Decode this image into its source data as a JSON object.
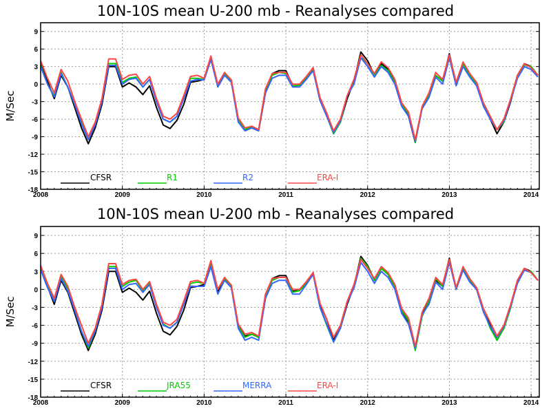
{
  "chart_data": [
    {
      "type": "line",
      "title": "10N-10S mean U-200 mb - Reanalyses compared",
      "ylabel": "M/Sec",
      "xlabel": "",
      "ylim": [
        -18,
        10.5
      ],
      "yticks": [
        9,
        6,
        3,
        0,
        -3,
        -6,
        -9,
        -12,
        -15,
        -18
      ],
      "xlim": [
        2008,
        2014.1
      ],
      "xticks": [
        2008,
        2009,
        2010,
        2011,
        2012,
        2013,
        2014
      ],
      "grid": true,
      "legend_position": "bottom-left",
      "x": [
        2008.0,
        2008.083,
        2008.167,
        2008.25,
        2008.333,
        2008.417,
        2008.5,
        2008.583,
        2008.667,
        2008.75,
        2008.833,
        2008.917,
        2009.0,
        2009.083,
        2009.167,
        2009.25,
        2009.333,
        2009.417,
        2009.5,
        2009.583,
        2009.667,
        2009.75,
        2009.833,
        2009.917,
        2010.0,
        2010.083,
        2010.167,
        2010.25,
        2010.333,
        2010.417,
        2010.5,
        2010.583,
        2010.667,
        2010.75,
        2010.833,
        2010.917,
        2011.0,
        2011.083,
        2011.167,
        2011.25,
        2011.333,
        2011.417,
        2011.5,
        2011.583,
        2011.667,
        2011.75,
        2011.833,
        2011.917,
        2012.0,
        2012.083,
        2012.167,
        2012.25,
        2012.333,
        2012.417,
        2012.5,
        2012.583,
        2012.667,
        2012.75,
        2012.833,
        2012.917,
        2013.0,
        2013.083,
        2013.167,
        2013.25,
        2013.333,
        2013.417,
        2013.5,
        2013.583,
        2013.667,
        2013.75,
        2013.833,
        2013.917,
        2014.0,
        2014.083
      ],
      "series": [
        {
          "name": "CFSR",
          "color": "#000000",
          "values": [
            3.5,
            0.5,
            -2.5,
            1.5,
            -0.5,
            -4.0,
            -7.5,
            -10.2,
            -7.5,
            -3.5,
            3.0,
            3.0,
            -0.5,
            0.2,
            -0.5,
            -1.8,
            -0.3,
            -4.0,
            -7.0,
            -7.6,
            -6.2,
            -3.5,
            0.3,
            0.5,
            0.8,
            4.5,
            -0.3,
            1.8,
            0.4,
            -6.0,
            -7.8,
            -7.5,
            -8.0,
            -1.5,
            1.8,
            2.3,
            2.3,
            -0.3,
            -0.2,
            1.0,
            2.8,
            -2.5,
            -5.0,
            -8.5,
            -6.5,
            -2.5,
            0.5,
            5.5,
            4.0,
            1.5,
            3.5,
            2.5,
            0.5,
            -3.5,
            -5.5,
            -10.0,
            -4.0,
            -2.0,
            1.5,
            0.5,
            5.2,
            0.0,
            3.5,
            1.5,
            0.0,
            -3.5,
            -6.0,
            -8.5,
            -6.5,
            -3.0,
            1.5,
            3.5,
            3.0,
            1.5
          ]
        },
        {
          "name": "R1",
          "color": "#00cc00",
          "values": [
            3.2,
            0.0,
            -2.0,
            2.0,
            -0.5,
            -3.5,
            -6.5,
            -9.5,
            -7.0,
            -3.0,
            3.5,
            3.5,
            0.3,
            1.0,
            1.2,
            -0.5,
            0.8,
            -3.0,
            -6.0,
            -6.5,
            -5.5,
            -2.5,
            1.0,
            1.0,
            0.8,
            4.5,
            -0.3,
            1.8,
            0.4,
            -6.0,
            -7.8,
            -7.3,
            -7.8,
            -1.0,
            1.5,
            2.0,
            1.8,
            -0.3,
            -0.2,
            1.0,
            2.5,
            -2.8,
            -5.5,
            -8.5,
            -6.5,
            -2.0,
            0.5,
            4.5,
            3.5,
            1.5,
            3.2,
            2.3,
            0.3,
            -3.5,
            -5.0,
            -10.0,
            -4.0,
            -2.0,
            1.5,
            0.5,
            4.5,
            0.0,
            3.5,
            1.5,
            0.0,
            -3.5,
            -6.0,
            -7.8,
            -6.5,
            -2.5,
            1.5,
            3.3,
            3.0,
            1.5
          ]
        },
        {
          "name": "R2",
          "color": "#3366ff",
          "values": [
            3.0,
            0.0,
            -2.2,
            1.8,
            -0.5,
            -3.5,
            -6.8,
            -9.5,
            -7.0,
            -3.0,
            3.2,
            3.2,
            0.0,
            0.8,
            1.0,
            -0.5,
            0.8,
            -3.0,
            -6.0,
            -6.5,
            -5.5,
            -2.5,
            0.5,
            0.8,
            0.7,
            4.2,
            -0.5,
            1.5,
            0.3,
            -6.5,
            -8.0,
            -7.5,
            -8.0,
            -1.5,
            1.0,
            1.5,
            1.5,
            -0.5,
            -0.5,
            0.8,
            2.3,
            -2.8,
            -5.5,
            -8.3,
            -6.3,
            -2.0,
            0.0,
            4.5,
            3.0,
            1.2,
            3.0,
            2.0,
            0.0,
            -3.8,
            -5.5,
            -9.8,
            -4.2,
            -2.3,
            1.2,
            0.0,
            4.5,
            -0.3,
            3.0,
            1.2,
            -0.3,
            -3.8,
            -6.0,
            -7.8,
            -6.3,
            -2.8,
            1.0,
            3.0,
            2.5,
            1.2
          ]
        },
        {
          "name": "ERA-I",
          "color": "#ff4444",
          "values": [
            4.0,
            1.0,
            -1.5,
            2.5,
            0.5,
            -3.0,
            -6.0,
            -9.0,
            -6.5,
            -2.5,
            4.3,
            4.3,
            0.8,
            1.5,
            1.7,
            0.0,
            1.3,
            -2.5,
            -5.5,
            -6.0,
            -5.0,
            -2.0,
            1.3,
            1.5,
            1.0,
            4.8,
            0.0,
            2.0,
            0.7,
            -5.8,
            -7.5,
            -7.2,
            -7.8,
            -0.8,
            1.8,
            2.0,
            2.0,
            0.0,
            0.0,
            1.3,
            2.8,
            -2.3,
            -5.0,
            -8.0,
            -6.0,
            -2.0,
            0.8,
            5.0,
            3.5,
            1.8,
            3.8,
            2.8,
            0.8,
            -3.2,
            -4.8,
            -9.5,
            -3.8,
            -1.5,
            2.0,
            0.8,
            5.0,
            0.3,
            3.8,
            1.8,
            0.3,
            -3.2,
            -5.5,
            -7.8,
            -6.0,
            -2.5,
            1.5,
            3.5,
            2.8,
            1.5
          ]
        }
      ]
    },
    {
      "type": "line",
      "title": "10N-10S mean U-200 mb - Reanalyses compared",
      "ylabel": "M/Sec",
      "xlabel": "",
      "ylim": [
        -18,
        10.5
      ],
      "yticks": [
        9,
        6,
        3,
        0,
        -3,
        -6,
        -9,
        -12,
        -15,
        -18
      ],
      "xlim": [
        2008,
        2014.1
      ],
      "xticks": [
        2008,
        2009,
        2010,
        2011,
        2012,
        2013,
        2014
      ],
      "grid": true,
      "legend_position": "bottom-left",
      "x": [
        2008.0,
        2008.083,
        2008.167,
        2008.25,
        2008.333,
        2008.417,
        2008.5,
        2008.583,
        2008.667,
        2008.75,
        2008.833,
        2008.917,
        2009.0,
        2009.083,
        2009.167,
        2009.25,
        2009.333,
        2009.417,
        2009.5,
        2009.583,
        2009.667,
        2009.75,
        2009.833,
        2009.917,
        2010.0,
        2010.083,
        2010.167,
        2010.25,
        2010.333,
        2010.417,
        2010.5,
        2010.583,
        2010.667,
        2010.75,
        2010.833,
        2010.917,
        2011.0,
        2011.083,
        2011.167,
        2011.25,
        2011.333,
        2011.417,
        2011.5,
        2011.583,
        2011.667,
        2011.75,
        2011.833,
        2011.917,
        2012.0,
        2012.083,
        2012.167,
        2012.25,
        2012.333,
        2012.417,
        2012.5,
        2012.583,
        2012.667,
        2012.75,
        2012.833,
        2012.917,
        2013.0,
        2013.083,
        2013.167,
        2013.25,
        2013.333,
        2013.417,
        2013.5,
        2013.583,
        2013.667,
        2013.75,
        2013.833,
        2013.917,
        2014.0,
        2014.083
      ],
      "series": [
        {
          "name": "CFSR",
          "color": "#000000",
          "values": [
            3.5,
            0.5,
            -2.5,
            1.5,
            -0.5,
            -4.0,
            -7.5,
            -10.2,
            -7.5,
            -3.5,
            3.0,
            3.0,
            -0.5,
            0.2,
            -0.5,
            -1.8,
            -0.3,
            -4.0,
            -7.0,
            -7.6,
            -6.2,
            -3.5,
            0.3,
            0.5,
            0.8,
            4.5,
            -0.3,
            1.8,
            0.4,
            -6.0,
            -7.8,
            -7.5,
            -8.0,
            -1.5,
            1.8,
            2.3,
            2.3,
            -0.3,
            -0.2,
            1.0,
            2.8,
            -2.5,
            -5.0,
            -8.5,
            -6.5,
            -2.5,
            0.5,
            5.5,
            4.0,
            1.5,
            3.5,
            2.5,
            0.5,
            -3.5,
            -5.5,
            -10.0,
            -4.0,
            -2.0,
            1.5,
            0.5,
            5.2,
            0.0,
            3.5,
            1.5,
            0.0,
            -3.5,
            -6.0,
            -8.5,
            -6.5,
            -3.0,
            1.5,
            3.5,
            3.0,
            1.5
          ]
        },
        {
          "name": "JRA55",
          "color": "#00cc00",
          "values": [
            3.8,
            0.8,
            -2.0,
            2.2,
            0.0,
            -3.5,
            -7.0,
            -9.8,
            -7.0,
            -3.0,
            3.8,
            3.8,
            0.5,
            1.2,
            1.5,
            -0.2,
            1.0,
            -2.8,
            -5.8,
            -6.5,
            -5.5,
            -2.5,
            1.0,
            1.2,
            1.0,
            4.5,
            0.0,
            1.8,
            0.5,
            -6.2,
            -8.0,
            -7.5,
            -8.0,
            -1.0,
            1.5,
            2.0,
            2.0,
            -0.5,
            -0.2,
            1.0,
            2.6,
            -3.0,
            -6.0,
            -8.8,
            -6.5,
            -2.0,
            0.5,
            5.2,
            3.8,
            1.5,
            3.5,
            2.5,
            0.5,
            -3.5,
            -5.2,
            -10.2,
            -4.5,
            -2.0,
            1.8,
            0.5,
            4.8,
            0.3,
            3.5,
            1.5,
            0.0,
            -3.5,
            -6.5,
            -8.5,
            -6.5,
            -3.0,
            1.2,
            3.2,
            3.0,
            1.5
          ]
        },
        {
          "name": "MERRA",
          "color": "#3366ff",
          "values": [
            3.3,
            0.3,
            -2.0,
            1.8,
            -0.3,
            -3.5,
            -7.0,
            -9.5,
            -7.0,
            -3.0,
            3.5,
            3.5,
            0.0,
            0.8,
            1.0,
            -0.5,
            0.8,
            -3.0,
            -6.0,
            -6.5,
            -5.5,
            -2.5,
            0.5,
            0.5,
            0.5,
            3.8,
            -0.8,
            1.5,
            0.3,
            -6.5,
            -8.5,
            -8.0,
            -8.5,
            -1.5,
            1.0,
            1.5,
            1.5,
            -0.8,
            -0.8,
            0.8,
            2.5,
            -3.0,
            -5.8,
            -8.8,
            -6.5,
            -2.2,
            0.2,
            4.5,
            3.0,
            1.0,
            3.0,
            2.0,
            0.0,
            -4.0,
            -5.8,
            -9.8,
            -4.2,
            -2.5,
            1.2,
            0.0,
            4.5,
            0.0,
            3.2,
            1.2,
            0.0,
            -3.8,
            -6.2,
            -8.0,
            -6.2,
            -2.8,
            1.0,
            3.2,
            2.8,
            1.5
          ]
        },
        {
          "name": "ERA-I",
          "color": "#ff4444",
          "values": [
            4.0,
            1.0,
            -1.5,
            2.5,
            0.5,
            -3.0,
            -6.0,
            -9.0,
            -6.5,
            -2.5,
            4.3,
            4.3,
            0.8,
            1.5,
            1.7,
            0.0,
            1.3,
            -2.5,
            -5.5,
            -6.0,
            -5.0,
            -2.0,
            1.3,
            1.5,
            1.0,
            4.8,
            0.0,
            2.0,
            0.7,
            -5.8,
            -7.5,
            -7.2,
            -7.8,
            -0.8,
            1.8,
            2.0,
            2.0,
            0.0,
            0.0,
            1.3,
            2.8,
            -2.3,
            -5.0,
            -8.0,
            -6.0,
            -2.0,
            0.8,
            5.0,
            3.5,
            1.8,
            3.8,
            2.8,
            0.8,
            -3.2,
            -4.8,
            -9.5,
            -3.8,
            -1.5,
            2.0,
            0.8,
            5.0,
            0.3,
            3.8,
            1.8,
            0.3,
            -3.2,
            -5.5,
            -7.8,
            -6.0,
            -2.5,
            1.5,
            3.5,
            2.8,
            1.5
          ]
        }
      ]
    }
  ]
}
